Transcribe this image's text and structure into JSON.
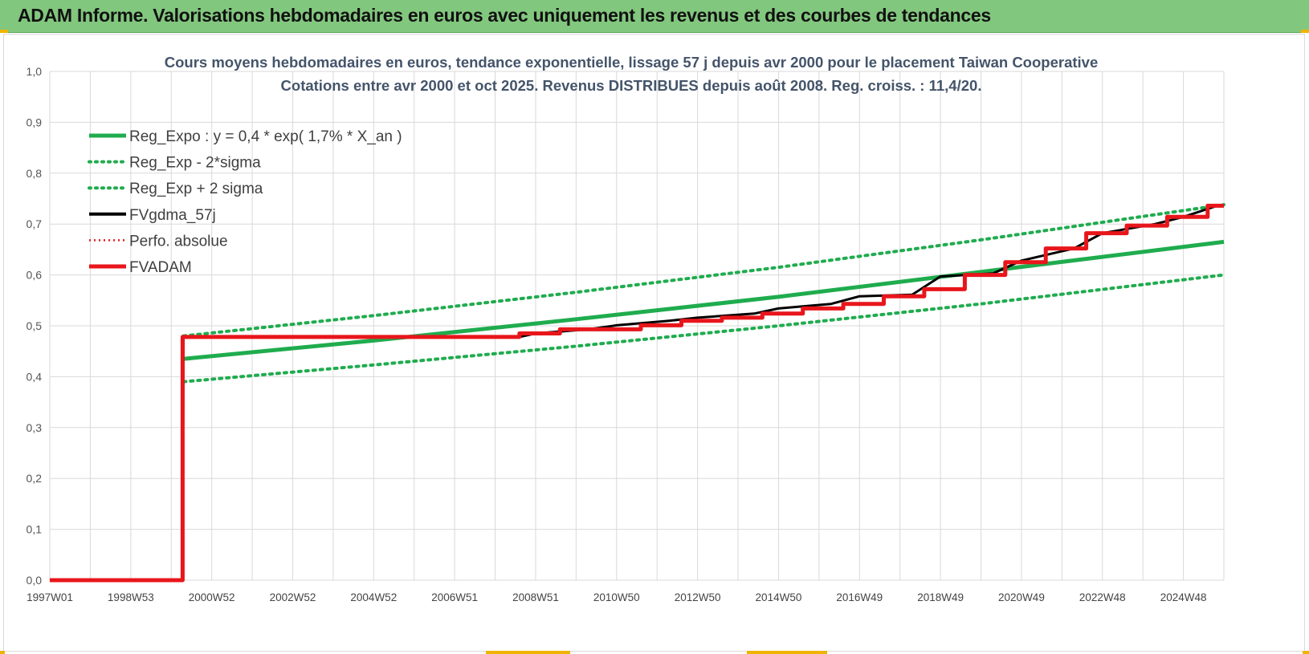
{
  "header": {
    "title": "ADAM Informe. Valorisations hebdomadaires en euros avec uniquement les revenus et des courbes de tendances"
  },
  "colors": {
    "header_bg": "#82c77e",
    "trend_green": "#1fac4e",
    "band_green": "#1fac4e",
    "fv_black": "#000000",
    "adam_red": "#e8161b",
    "grid": "#d9d9d9"
  },
  "chart_data": {
    "type": "line",
    "title_lines": [
      "Cours moyens hebdomadaires en euros, tendance exponentielle, lissage 57 j depuis avr 2000 pour le placement Taiwan Cooperative",
      "Cotations entre avr 2000 et oct 2025. Revenus DISTRIBUES depuis août 2008. Reg. croiss. : 11,4/20."
    ],
    "xlabel": "",
    "ylabel": "",
    "x_ticks": [
      "1997W01",
      "1998W53",
      "2000W52",
      "2002W52",
      "2004W52",
      "2006W51",
      "2008W51",
      "2010W50",
      "2012W50",
      "2014W50",
      "2016W49",
      "2018W49",
      "2020W49",
      "2022W48",
      "2024W48"
    ],
    "x_range": [
      1997.0,
      2026.0
    ],
    "y_ticks": [
      "0,0",
      "0,1",
      "0,2",
      "0,3",
      "0,4",
      "0,5",
      "0,6",
      "0,7",
      "0,8",
      "0,9",
      "1,0"
    ],
    "ylim": [
      0,
      1.0
    ],
    "grid": true,
    "legend_position": "top-left",
    "legend": [
      {
        "label": "Reg_Expo : y = 0,4 * exp( 1,7% *  X_an )",
        "style": "solid-green"
      },
      {
        "label": "Reg_Exp - 2*sigma",
        "style": "dotted-green"
      },
      {
        "label": "Reg_Exp + 2 sigma",
        "style": "dotted-green"
      },
      {
        "label": "FVgdma_57j",
        "style": "solid-black"
      },
      {
        "label": "Perfo. absolue",
        "style": "dotted-red"
      },
      {
        "label": "FVADAM",
        "style": "solid-red"
      }
    ],
    "series": [
      {
        "name": "Reg_Expo : y = 0,4 * exp( 1,7% *  X_an )",
        "x": [
          2000.3,
          2005.0,
          2010.0,
          2015.0,
          2020.0,
          2026.0
        ],
        "y": [
          0.435,
          0.471,
          0.513,
          0.557,
          0.606,
          0.665
        ]
      },
      {
        "name": "Reg_Exp - 2*sigma",
        "x": [
          2000.3,
          2005.0,
          2010.0,
          2015.0,
          2020.0,
          2026.0
        ],
        "y": [
          0.39,
          0.423,
          0.46,
          0.5,
          0.543,
          0.6
        ]
      },
      {
        "name": "Reg_Exp + 2 sigma",
        "x": [
          2000.3,
          2005.0,
          2010.0,
          2015.0,
          2020.0,
          2026.0
        ],
        "y": [
          0.48,
          0.52,
          0.566,
          0.615,
          0.669,
          0.738
        ]
      },
      {
        "name": "FVgdma_57j",
        "x": [
          1997.0,
          2000.28,
          2000.3,
          2008.6,
          2009.0,
          2010.3,
          2011.0,
          2012.3,
          2013.0,
          2014.4,
          2015.0,
          2016.3,
          2017.0,
          2018.3,
          2019.0,
          2020.3,
          2021.0,
          2022.3,
          2023.0,
          2024.3,
          2025.0,
          2025.8
        ],
        "y": [
          0.0,
          0.0,
          0.478,
          0.478,
          0.485,
          0.493,
          0.501,
          0.51,
          0.516,
          0.524,
          0.534,
          0.543,
          0.558,
          0.561,
          0.597,
          0.603,
          0.628,
          0.652,
          0.682,
          0.7,
          0.714,
          0.735
        ]
      },
      {
        "name": "FVADAM",
        "x": [
          1997.0,
          2000.28,
          2000.28,
          2008.6,
          2008.6,
          2009.6,
          2009.6,
          2011.6,
          2011.6,
          2012.6,
          2012.6,
          2013.6,
          2013.6,
          2014.6,
          2014.6,
          2015.6,
          2015.6,
          2016.6,
          2016.6,
          2017.6,
          2017.6,
          2018.6,
          2018.6,
          2019.6,
          2019.6,
          2020.6,
          2020.6,
          2021.6,
          2021.6,
          2022.6,
          2022.6,
          2023.6,
          2023.6,
          2024.6,
          2024.6,
          2025.6,
          2025.6,
          2026.0
        ],
        "y": [
          0.0,
          0.0,
          0.478,
          0.478,
          0.485,
          0.485,
          0.493,
          0.493,
          0.501,
          0.501,
          0.51,
          0.51,
          0.516,
          0.516,
          0.524,
          0.524,
          0.534,
          0.534,
          0.543,
          0.543,
          0.558,
          0.558,
          0.572,
          0.572,
          0.6,
          0.6,
          0.625,
          0.625,
          0.652,
          0.652,
          0.682,
          0.682,
          0.697,
          0.697,
          0.714,
          0.714,
          0.736,
          0.736
        ]
      }
    ]
  }
}
